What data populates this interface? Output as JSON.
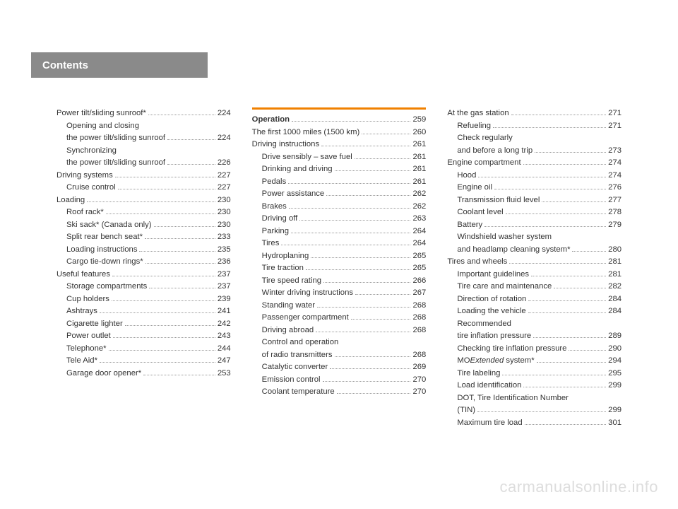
{
  "header": {
    "title": "Contents"
  },
  "watermark": "carmanualsonline.info",
  "columns": [
    {
      "accent": false,
      "entries": [
        {
          "label": "Power tilt/sliding sunroof*",
          "page": "224",
          "sub": false
        },
        {
          "label": "Opening and closing",
          "page": "",
          "sub": true,
          "nodots": true
        },
        {
          "label": "the power tilt/sliding sunroof",
          "page": "224",
          "sub": true
        },
        {
          "label": "Synchronizing",
          "page": "",
          "sub": true,
          "nodots": true
        },
        {
          "label": "the power tilt/sliding sunroof",
          "page": "226",
          "sub": true
        },
        {
          "label": "Driving systems",
          "page": "227",
          "sub": false
        },
        {
          "label": "Cruise control",
          "page": "227",
          "sub": true
        },
        {
          "label": "Loading",
          "page": "230",
          "sub": false
        },
        {
          "label": "Roof rack*",
          "page": "230",
          "sub": true
        },
        {
          "label": "Ski sack* (Canada only)",
          "page": "230",
          "sub": true
        },
        {
          "label": "Split rear bench seat*",
          "page": "233",
          "sub": true
        },
        {
          "label": "Loading instructions",
          "page": "235",
          "sub": true
        },
        {
          "label": "Cargo tie-down rings*",
          "page": "236",
          "sub": true
        },
        {
          "label": "Useful features",
          "page": "237",
          "sub": false
        },
        {
          "label": "Storage compartments",
          "page": "237",
          "sub": true
        },
        {
          "label": "Cup holders",
          "page": "239",
          "sub": true
        },
        {
          "label": "Ashtrays",
          "page": "241",
          "sub": true
        },
        {
          "label": "Cigarette lighter",
          "page": "242",
          "sub": true
        },
        {
          "label": "Power outlet",
          "page": "243",
          "sub": true
        },
        {
          "label": "Telephone*",
          "page": "244",
          "sub": true
        },
        {
          "label": "Tele Aid*",
          "page": "247",
          "sub": true
        },
        {
          "label": "Garage door opener*",
          "page": "253",
          "sub": true
        }
      ]
    },
    {
      "accent": true,
      "entries": [
        {
          "label": "Operation",
          "page": "259",
          "sub": false,
          "bold": true
        },
        {
          "label": "The first 1000 miles (1500 km)",
          "page": "260",
          "sub": false
        },
        {
          "label": "Driving instructions",
          "page": "261",
          "sub": false
        },
        {
          "label": "Drive sensibly – save fuel",
          "page": "261",
          "sub": true
        },
        {
          "label": "Drinking and driving",
          "page": "261",
          "sub": true
        },
        {
          "label": "Pedals",
          "page": "261",
          "sub": true
        },
        {
          "label": "Power assistance",
          "page": "262",
          "sub": true
        },
        {
          "label": "Brakes",
          "page": "262",
          "sub": true
        },
        {
          "label": "Driving off",
          "page": "263",
          "sub": true
        },
        {
          "label": "Parking",
          "page": "264",
          "sub": true
        },
        {
          "label": "Tires",
          "page": "264",
          "sub": true
        },
        {
          "label": "Hydroplaning",
          "page": "265",
          "sub": true
        },
        {
          "label": "Tire traction",
          "page": "265",
          "sub": true
        },
        {
          "label": "Tire speed rating",
          "page": "266",
          "sub": true
        },
        {
          "label": "Winter driving instructions",
          "page": "267",
          "sub": true
        },
        {
          "label": "Standing water",
          "page": "268",
          "sub": true
        },
        {
          "label": "Passenger compartment",
          "page": "268",
          "sub": true
        },
        {
          "label": "Driving abroad",
          "page": "268",
          "sub": true
        },
        {
          "label": "Control and operation",
          "page": "",
          "sub": true,
          "nodots": true
        },
        {
          "label": "of radio transmitters",
          "page": "268",
          "sub": true
        },
        {
          "label": "Catalytic converter",
          "page": "269",
          "sub": true
        },
        {
          "label": "Emission control",
          "page": "270",
          "sub": true
        },
        {
          "label": "Coolant temperature",
          "page": "270",
          "sub": true
        }
      ]
    },
    {
      "accent": false,
      "entries": [
        {
          "label": "At the gas station",
          "page": "271",
          "sub": false
        },
        {
          "label": "Refueling",
          "page": "271",
          "sub": true
        },
        {
          "label": "Check regularly",
          "page": "",
          "sub": true,
          "nodots": true
        },
        {
          "label": "and before a long trip",
          "page": "273",
          "sub": true
        },
        {
          "label": "Engine compartment",
          "page": "274",
          "sub": false
        },
        {
          "label": "Hood",
          "page": "274",
          "sub": true
        },
        {
          "label": "Engine oil",
          "page": "276",
          "sub": true
        },
        {
          "label": "Transmission fluid level",
          "page": "277",
          "sub": true
        },
        {
          "label": "Coolant level",
          "page": "278",
          "sub": true
        },
        {
          "label": "Battery",
          "page": "279",
          "sub": true
        },
        {
          "label": "Windshield washer system",
          "page": "",
          "sub": true,
          "nodots": true
        },
        {
          "label": "and headlamp cleaning system*",
          "page": "280",
          "sub": true
        },
        {
          "label": "Tires and wheels",
          "page": "281",
          "sub": false
        },
        {
          "label": "Important guidelines",
          "page": "281",
          "sub": true
        },
        {
          "label": "Tire care and maintenance",
          "page": "282",
          "sub": true
        },
        {
          "label": "Direction of rotation",
          "page": "284",
          "sub": true
        },
        {
          "label": "Loading the vehicle",
          "page": "284",
          "sub": true
        },
        {
          "label": "Recommended",
          "page": "",
          "sub": true,
          "nodots": true
        },
        {
          "label": "tire inflation pressure",
          "page": "289",
          "sub": true
        },
        {
          "label": "Checking tire inflation pressure",
          "page": "290",
          "sub": true
        },
        {
          "label": "MOExtended system*",
          "page": "294",
          "sub": true,
          "html": true
        },
        {
          "label": "Tire labeling",
          "page": "295",
          "sub": true
        },
        {
          "label": "Load identification",
          "page": "299",
          "sub": true
        },
        {
          "label": "DOT, Tire Identification Number",
          "page": "",
          "sub": true,
          "nodots": true
        },
        {
          "label": "(TIN)",
          "page": "299",
          "sub": true
        },
        {
          "label": "Maximum tire load",
          "page": "301",
          "sub": true
        }
      ]
    }
  ]
}
